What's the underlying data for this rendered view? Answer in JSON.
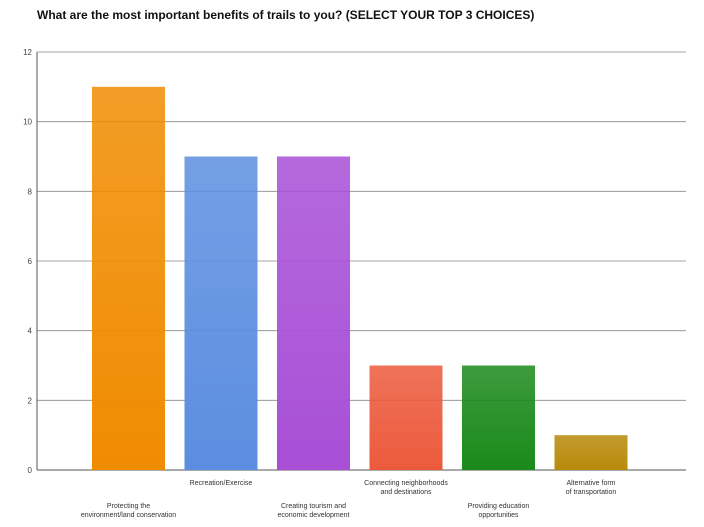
{
  "question_title": "What are the most important benefits of trails to you? (SELECT YOUR TOP 3 CHOICES)",
  "chart_data": {
    "type": "bar",
    "categories": [
      [
        "Protecting the",
        "environment/land conservation"
      ],
      [
        "Recreation/Exercise"
      ],
      [
        "Creating tourism and",
        "economic development"
      ],
      [
        "Connecting neighborhoods",
        "and destinations"
      ],
      [
        "Providing education",
        "opportunities"
      ],
      [
        "Alternative form",
        "of transportation"
      ]
    ],
    "values": [
      11,
      9,
      9,
      3,
      3,
      1
    ],
    "colors": [
      "#f08c00",
      "#5b8ee0",
      "#a84fd6",
      "#ec5a3c",
      "#1a8a1a",
      "#b88a0a"
    ],
    "ylim": [
      0,
      12
    ],
    "yticks": [
      0,
      2,
      4,
      6,
      8,
      10,
      12
    ],
    "grid": true
  }
}
